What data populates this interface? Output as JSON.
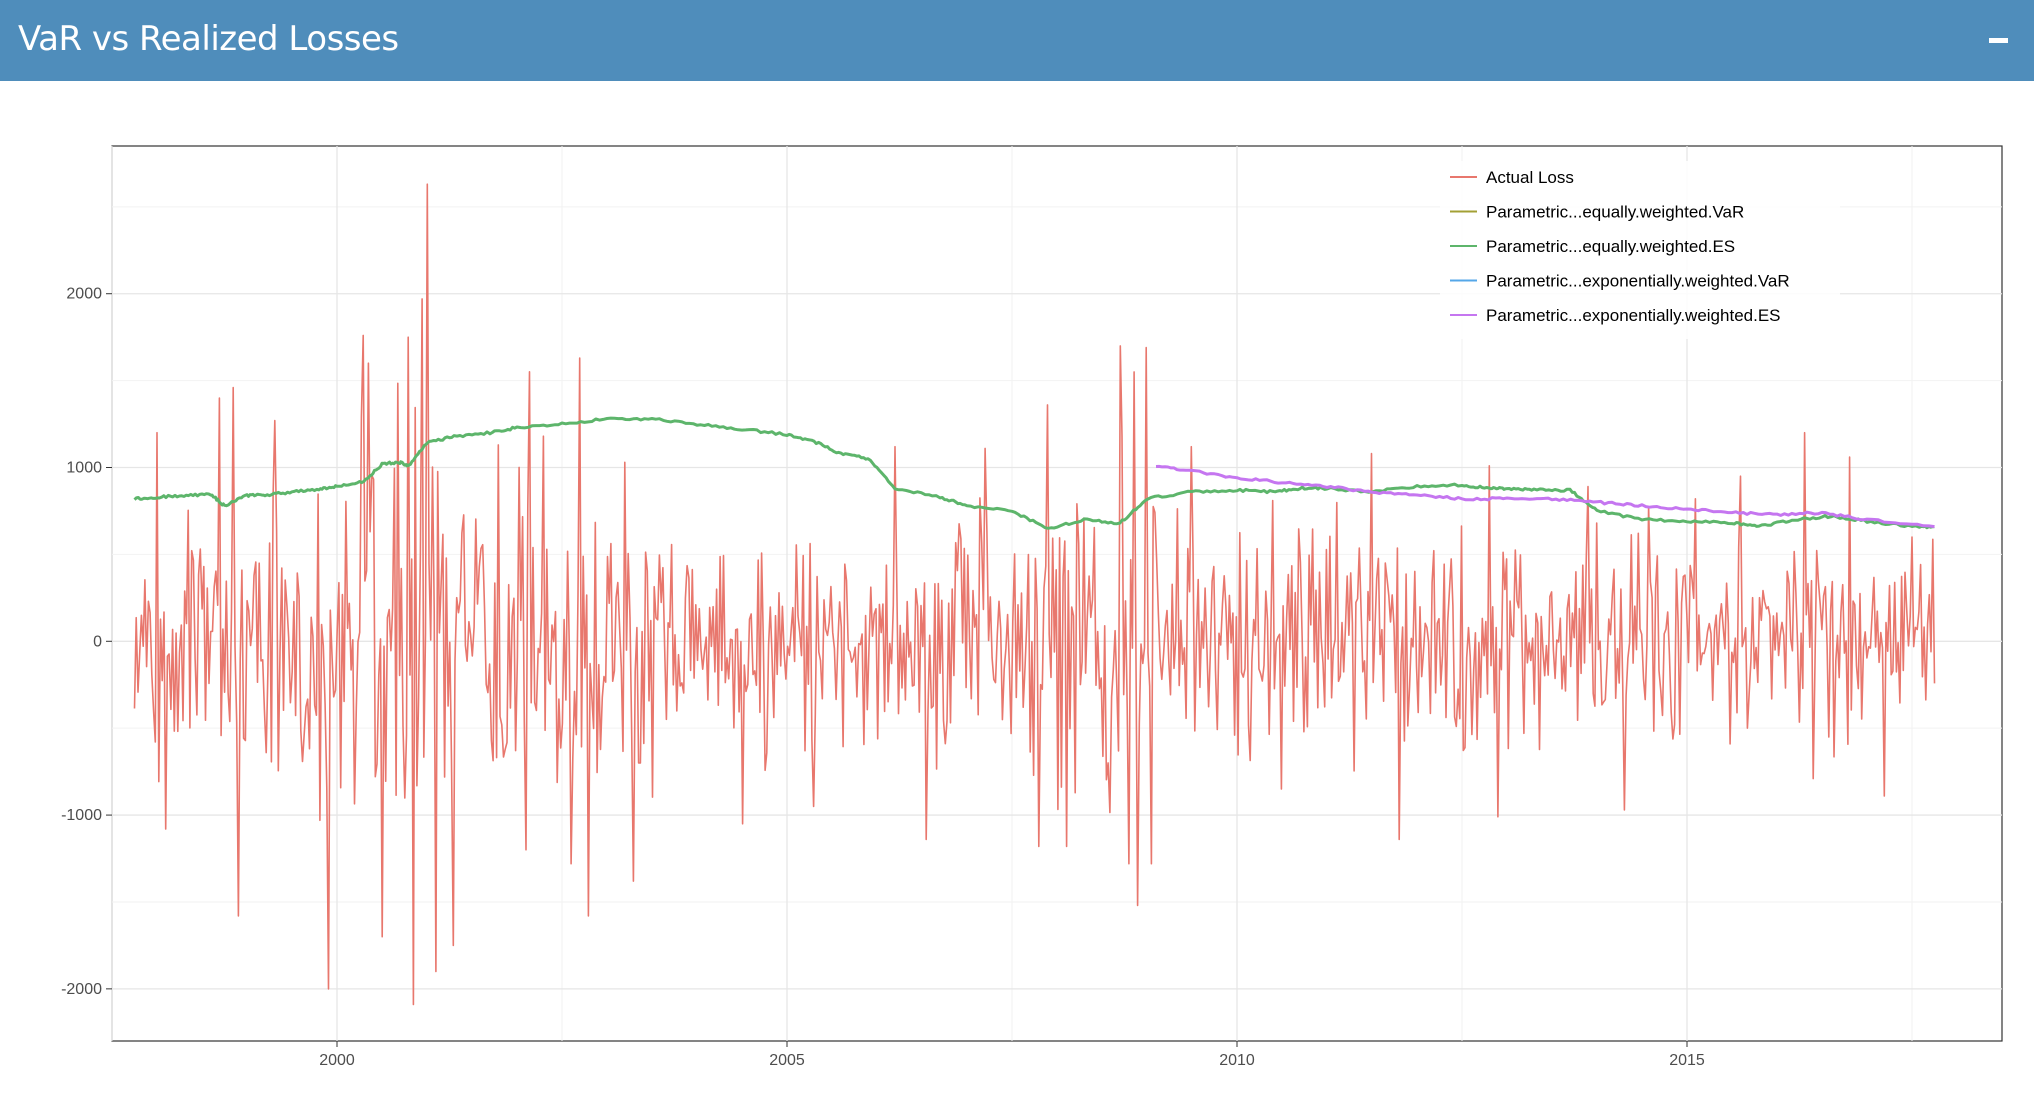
{
  "header": {
    "title": "VaR vs Realized Losses"
  },
  "colors": {
    "header_bg": "#4f8dbb",
    "actual_loss": "#e8776d",
    "equally_var": "#a3a035",
    "equally_es": "#5db56b",
    "exp_var": "#55a7e8",
    "exp_es": "#c576f0"
  },
  "chart_data": {
    "type": "line",
    "title": "",
    "xlabel": "",
    "ylabel": "",
    "xlim": [
      1997.5,
      2018.5
    ],
    "ylim": [
      -2300,
      2850
    ],
    "x_ticks": [
      2000,
      2005,
      2010,
      2015
    ],
    "x_tick_labels": [
      "2000",
      "2005",
      "2010",
      "2015"
    ],
    "y_ticks": [
      -2000,
      -1000,
      0,
      1000,
      2000
    ],
    "y_tick_labels": [
      "-2000",
      "-1000",
      "0",
      "1000",
      "2000"
    ],
    "grid": true,
    "legend_position": "top-right",
    "series": [
      {
        "name": "Actual Loss",
        "color": "#e8776d",
        "kind": "noise",
        "x_start": 1997.75,
        "x_end": 2017.75,
        "envelope_x": [
          1997.75,
          1998.5,
          1999.5,
          2000.5,
          2001.5,
          2002.5,
          2003.5,
          2004.5,
          2005.5,
          2006.5,
          2007.5,
          2008.0,
          2008.5,
          2009.0,
          2009.5,
          2010.5,
          2011.5,
          2012.5,
          2013.5,
          2014.5,
          2015.5,
          2016.5,
          2017.75
        ],
        "envelope_amp": [
          550,
          650,
          750,
          900,
          850,
          700,
          600,
          500,
          450,
          480,
          500,
          600,
          850,
          650,
          500,
          500,
          550,
          550,
          450,
          420,
          480,
          420,
          380
        ],
        "spikes": [
          [
            1998.0,
            1200
          ],
          [
            1998.1,
            -1080
          ],
          [
            1998.7,
            1400
          ],
          [
            1998.85,
            1460
          ],
          [
            1998.9,
            -1580
          ],
          [
            1999.3,
            1270
          ],
          [
            1999.9,
            -2000
          ],
          [
            2000.3,
            1760
          ],
          [
            2000.35,
            1600
          ],
          [
            2000.5,
            -1700
          ],
          [
            2000.8,
            1750
          ],
          [
            2000.85,
            -2090
          ],
          [
            2000.95,
            1970
          ],
          [
            2001.0,
            2630
          ],
          [
            2001.1,
            -1900
          ],
          [
            2001.3,
            -1750
          ],
          [
            2001.8,
            1130
          ],
          [
            2002.1,
            -1200
          ],
          [
            2002.3,
            1180
          ],
          [
            2002.6,
            -1280
          ],
          [
            2002.7,
            1630
          ],
          [
            2002.8,
            -1580
          ],
          [
            2003.2,
            1030
          ],
          [
            2003.3,
            -1380
          ],
          [
            2004.5,
            -1050
          ],
          [
            2005.3,
            -950
          ],
          [
            2006.2,
            1120
          ],
          [
            2006.55,
            -1140
          ],
          [
            2007.2,
            1110
          ],
          [
            2007.8,
            -1180
          ],
          [
            2007.9,
            1360
          ],
          [
            2008.1,
            -1180
          ],
          [
            2008.7,
            1700
          ],
          [
            2008.8,
            -1280
          ],
          [
            2008.85,
            1550
          ],
          [
            2008.9,
            -1520
          ],
          [
            2009.0,
            1690
          ],
          [
            2009.05,
            -1280
          ],
          [
            2009.5,
            1120
          ],
          [
            2010.4,
            810
          ],
          [
            2010.5,
            -850
          ],
          [
            2011.5,
            1080
          ],
          [
            2011.8,
            -1140
          ],
          [
            2012.8,
            1010
          ],
          [
            2012.9,
            -1010
          ],
          [
            2013.9,
            890
          ],
          [
            2014.3,
            -970
          ],
          [
            2015.1,
            820
          ],
          [
            2015.6,
            950
          ],
          [
            2016.3,
            1200
          ],
          [
            2016.4,
            -790
          ],
          [
            2016.8,
            1060
          ],
          [
            2017.2,
            -890
          ],
          [
            2017.5,
            600
          ]
        ]
      },
      {
        "name": "Parametric...equally.weighted.VaR",
        "color": "#a3a035",
        "kind": "hidden",
        "x": [],
        "y": []
      },
      {
        "name": "Parametric...equally.weighted.ES",
        "color": "#5db56b",
        "kind": "line",
        "x": [
          1997.75,
          1998.0,
          1998.3,
          1998.6,
          1998.75,
          1999.0,
          1999.2,
          1999.5,
          1999.8,
          2000.0,
          2000.3,
          2000.5,
          2000.7,
          2000.8,
          2001.0,
          2001.3,
          2001.7,
          2002.0,
          2002.5,
          2003.0,
          2003.5,
          2004.0,
          2004.5,
          2005.0,
          2005.3,
          2005.6,
          2005.9,
          2006.2,
          2006.7,
          2007.0,
          2007.5,
          2007.9,
          2008.3,
          2008.7,
          2009.0,
          2009.5,
          2010.0,
          2010.4,
          2010.7,
          2011.0,
          2011.5,
          2012.0,
          2012.5,
          2012.8,
          2013.0,
          2013.3,
          2013.7,
          2014.0,
          2014.5,
          2015.0,
          2015.5,
          2015.8,
          2016.2,
          2016.6,
          2017.0,
          2017.5,
          2017.75
        ],
        "y": [
          820,
          830,
          840,
          845,
          780,
          840,
          840,
          860,
          875,
          890,
          920,
          1020,
          1030,
          1010,
          1140,
          1180,
          1200,
          1230,
          1250,
          1280,
          1280,
          1250,
          1220,
          1190,
          1150,
          1080,
          1050,
          880,
          830,
          780,
          750,
          650,
          700,
          680,
          820,
          860,
          870,
          860,
          880,
          880,
          860,
          890,
          900,
          880,
          880,
          870,
          870,
          750,
          700,
          690,
          680,
          660,
          700,
          720,
          690,
          660,
          660
        ]
      },
      {
        "name": "Parametric...exponentially.weighted.VaR",
        "color": "#55a7e8",
        "kind": "hidden",
        "x": [],
        "y": []
      },
      {
        "name": "Parametric...exponentially.weighted.ES",
        "color": "#c576f0",
        "kind": "line",
        "x": [
          2009.1,
          2009.5,
          2010.0,
          2010.5,
          2011.0,
          2011.5,
          2012.0,
          2012.5,
          2013.0,
          2013.5,
          2014.0,
          2014.5,
          2015.0,
          2015.5,
          2016.0,
          2016.5,
          2017.0,
          2017.75
        ],
        "y": [
          1010,
          980,
          940,
          915,
          890,
          860,
          840,
          820,
          820,
          820,
          800,
          780,
          760,
          740,
          730,
          740,
          700,
          660
        ]
      }
    ]
  }
}
